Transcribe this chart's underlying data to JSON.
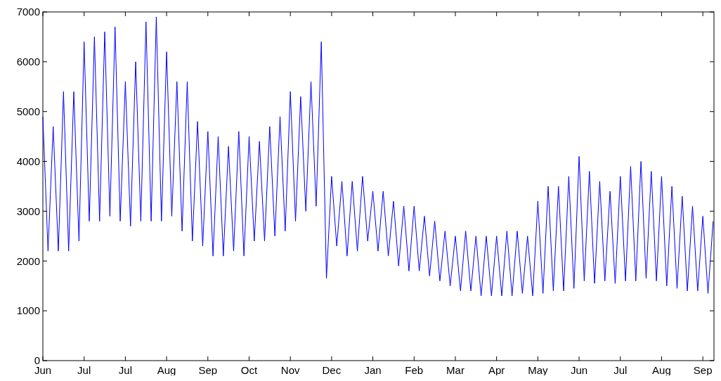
{
  "chart_data": {
    "type": "line",
    "categories": [
      "Jun",
      null,
      null,
      null,
      null,
      null,
      null,
      null,
      "Jul",
      null,
      null,
      null,
      null,
      null,
      null,
      null,
      "Jul",
      null,
      null,
      null,
      null,
      null,
      null,
      null,
      "Aug",
      null,
      null,
      null,
      null,
      null,
      null,
      null,
      "Sep",
      null,
      null,
      null,
      null,
      null,
      null,
      null,
      "Oct",
      null,
      null,
      null,
      null,
      null,
      null,
      null,
      "Nov",
      null,
      null,
      null,
      null,
      null,
      null,
      null,
      "Dec",
      null,
      null,
      null,
      null,
      null,
      null,
      null,
      "Jan",
      null,
      null,
      null,
      null,
      null,
      null,
      null,
      "Feb",
      null,
      null,
      null,
      null,
      null,
      null,
      null,
      "Mar",
      null,
      null,
      null,
      null,
      null,
      null,
      null,
      "Apr",
      null,
      null,
      null,
      null,
      null,
      null,
      null,
      "May",
      null,
      null,
      null,
      null,
      null,
      null,
      null,
      "Jun",
      null,
      null,
      null,
      null,
      null,
      null,
      null,
      "Jul",
      null,
      null,
      null,
      null,
      null,
      null,
      null,
      "Aug",
      null,
      null,
      null,
      null,
      null,
      null,
      null,
      "Sep",
      null,
      null
    ],
    "series": [
      {
        "color": "#0000ff",
        "values": [
          4900,
          2200,
          4700,
          2200,
          5400,
          2200,
          5400,
          2400,
          6400,
          2800,
          6500,
          2800,
          6600,
          2900,
          6700,
          2800,
          5600,
          2700,
          6000,
          2800,
          6800,
          2800,
          6900,
          2800,
          6200,
          2900,
          5600,
          2600,
          5600,
          2400,
          4800,
          2300,
          4600,
          2100,
          4500,
          2100,
          4300,
          2200,
          4600,
          2100,
          4500,
          2400,
          4400,
          2400,
          4700,
          2500,
          4900,
          2600,
          5400,
          2800,
          5300,
          3000,
          5600,
          3100,
          6400,
          1650,
          3700,
          2300,
          3600,
          2100,
          3600,
          2200,
          3700,
          2400,
          3400,
          2200,
          3400,
          2100,
          3200,
          1900,
          3100,
          1800,
          3100,
          1800,
          2900,
          1700,
          2800,
          1600,
          2600,
          1500,
          2500,
          1400,
          2600,
          1400,
          2500,
          1300,
          2500,
          1300,
          2500,
          1300,
          2600,
          1300,
          2600,
          1350,
          2500,
          1300,
          3200,
          1350,
          3500,
          1400,
          3500,
          1400,
          3700,
          1450,
          4100,
          1600,
          3800,
          1550,
          3600,
          1600,
          3400,
          1550,
          3700,
          1600,
          3900,
          1600,
          4000,
          1650,
          3800,
          1600,
          3700,
          1500,
          3500,
          1450,
          3300,
          1400,
          3100,
          1400,
          2900,
          1350,
          2800
        ]
      }
    ],
    "ylim": [
      0,
      7000
    ],
    "yticks": [
      0,
      1000,
      2000,
      3000,
      4000,
      5000,
      6000,
      7000
    ],
    "grid": false,
    "marker": "none",
    "line_style": "solid"
  }
}
